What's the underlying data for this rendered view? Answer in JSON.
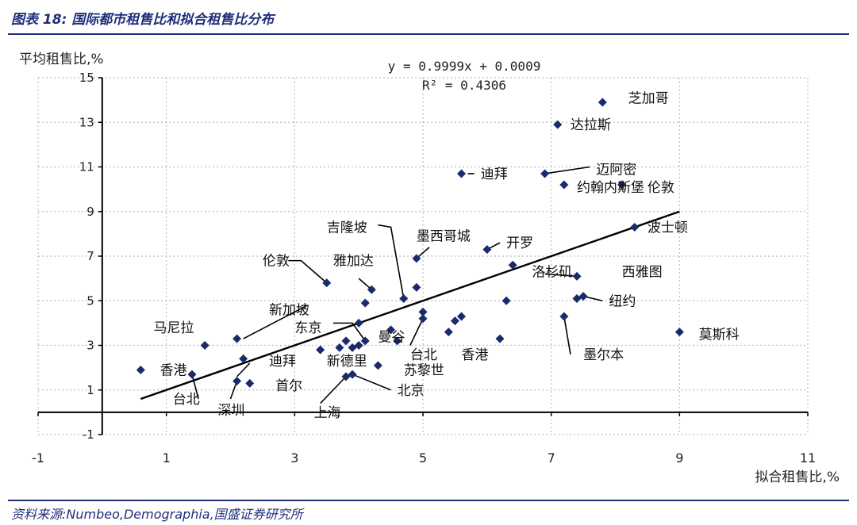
{
  "header": {
    "title": "图表 18:  国际都市租售比和拟合租售比分布"
  },
  "footer": {
    "source": "资料来源:Numbeo,Demographia,国盛证券研究所"
  },
  "colors": {
    "accent": "#1f2f7a",
    "marker": "#1a2a6c",
    "line": "#000000",
    "grid": "#bdbdbd"
  },
  "chart_data": {
    "type": "scatter",
    "xlabel": "拟合租售比,%",
    "ylabel": "平均租售比,%",
    "xlim": [
      -1,
      11
    ],
    "ylim": [
      -1,
      15
    ],
    "x_ticks": [
      -1,
      1,
      3,
      5,
      7,
      9,
      11
    ],
    "y_ticks": [
      -1,
      1,
      3,
      5,
      7,
      9,
      11,
      13,
      15
    ],
    "x_tick_labels": [
      "-1",
      "1",
      "3",
      "5",
      "7",
      "9",
      "11"
    ],
    "y_tick_labels": [
      "-1",
      "1",
      "3",
      "5",
      "7",
      "9",
      "11",
      "13",
      "15"
    ],
    "grid": true,
    "equation": "y = 0.9999x + 0.0009",
    "r_squared": "R² = 0.4306",
    "trendline": {
      "slope": 0.9999,
      "intercept": 0.0009,
      "x_range": [
        0.6,
        9.0
      ]
    },
    "points": [
      {
        "x": 0.6,
        "y": 1.9
      },
      {
        "x": 1.6,
        "y": 3.0
      },
      {
        "x": 1.4,
        "y": 1.7
      },
      {
        "x": 2.1,
        "y": 1.4
      },
      {
        "x": 2.2,
        "y": 2.4
      },
      {
        "x": 2.1,
        "y": 3.3
      },
      {
        "x": 2.3,
        "y": 1.3
      },
      {
        "x": 3.5,
        "y": 5.8
      },
      {
        "x": 3.4,
        "y": 2.8
      },
      {
        "x": 3.7,
        "y": 2.9
      },
      {
        "x": 3.8,
        "y": 3.2
      },
      {
        "x": 3.9,
        "y": 2.9
      },
      {
        "x": 4.0,
        "y": 3.0
      },
      {
        "x": 4.1,
        "y": 3.2
      },
      {
        "x": 4.0,
        "y": 4.0
      },
      {
        "x": 4.1,
        "y": 4.9
      },
      {
        "x": 4.2,
        "y": 5.5
      },
      {
        "x": 3.8,
        "y": 1.6
      },
      {
        "x": 3.9,
        "y": 1.7
      },
      {
        "x": 4.3,
        "y": 2.1
      },
      {
        "x": 4.5,
        "y": 3.7
      },
      {
        "x": 4.6,
        "y": 3.2
      },
      {
        "x": 4.7,
        "y": 5.1
      },
      {
        "x": 4.9,
        "y": 6.9
      },
      {
        "x": 4.9,
        "y": 5.6
      },
      {
        "x": 5.0,
        "y": 4.5
      },
      {
        "x": 5.0,
        "y": 4.2
      },
      {
        "x": 5.4,
        "y": 3.6
      },
      {
        "x": 5.5,
        "y": 4.1
      },
      {
        "x": 5.6,
        "y": 4.3
      },
      {
        "x": 5.6,
        "y": 10.7
      },
      {
        "x": 6.0,
        "y": 7.3
      },
      {
        "x": 6.3,
        "y": 5.0
      },
      {
        "x": 6.2,
        "y": 3.3
      },
      {
        "x": 6.4,
        "y": 6.6
      },
      {
        "x": 6.9,
        "y": 10.7
      },
      {
        "x": 7.1,
        "y": 12.9
      },
      {
        "x": 7.2,
        "y": 10.2
      },
      {
        "x": 7.2,
        "y": 4.3
      },
      {
        "x": 7.4,
        "y": 6.1
      },
      {
        "x": 7.4,
        "y": 5.1
      },
      {
        "x": 7.5,
        "y": 5.2
      },
      {
        "x": 7.8,
        "y": 13.9
      },
      {
        "x": 8.1,
        "y": 10.2
      },
      {
        "x": 8.3,
        "y": 8.3
      },
      {
        "x": 9.0,
        "y": 3.6
      }
    ],
    "annotations": [
      {
        "text": "芝加哥",
        "x": 8.2,
        "y": 14.1
      },
      {
        "text": "达拉斯",
        "x": 7.3,
        "y": 12.9
      },
      {
        "text": "迈阿密",
        "x": 7.7,
        "y": 10.9
      },
      {
        "text": "迪拜",
        "x": 5.9,
        "y": 10.7
      },
      {
        "text": "约翰内斯堡",
        "x": 7.4,
        "y": 10.1
      },
      {
        "text": "伦敦",
        "x": 8.5,
        "y": 10.1
      },
      {
        "text": "波士顿",
        "x": 8.5,
        "y": 8.3
      },
      {
        "text": "开罗",
        "x": 6.3,
        "y": 7.6
      },
      {
        "text": "吉隆坡",
        "x": 3.5,
        "y": 8.3
      },
      {
        "text": "墨西哥城",
        "x": 4.9,
        "y": 7.9
      },
      {
        "text": "伦敦",
        "x": 2.5,
        "y": 6.8
      },
      {
        "text": "雅加达",
        "x": 3.6,
        "y": 6.8
      },
      {
        "text": "洛杉矶",
        "x": 6.7,
        "y": 6.3
      },
      {
        "text": "西雅图",
        "x": 8.1,
        "y": 6.3
      },
      {
        "text": "纽约",
        "x": 7.9,
        "y": 5.0
      },
      {
        "text": "新加坡",
        "x": 2.6,
        "y": 4.6
      },
      {
        "text": "马尼拉",
        "x": 0.8,
        "y": 3.8
      },
      {
        "text": "东京",
        "x": 3.0,
        "y": 3.8
      },
      {
        "text": "曼谷",
        "x": 4.3,
        "y": 3.4
      },
      {
        "text": "莫斯科",
        "x": 9.3,
        "y": 3.5
      },
      {
        "text": "台北",
        "x": 4.8,
        "y": 2.6
      },
      {
        "text": "香港",
        "x": 5.6,
        "y": 2.6
      },
      {
        "text": "墨尔本",
        "x": 7.5,
        "y": 2.6
      },
      {
        "text": "迪拜",
        "x": 2.6,
        "y": 2.3
      },
      {
        "text": "新德里",
        "x": 3.5,
        "y": 2.3
      },
      {
        "text": "香港",
        "x": 0.9,
        "y": 1.9
      },
      {
        "text": "苏黎世",
        "x": 4.7,
        "y": 1.9
      },
      {
        "text": "首尔",
        "x": 2.7,
        "y": 1.2
      },
      {
        "text": "北京",
        "x": 4.6,
        "y": 1.0
      },
      {
        "text": "台北",
        "x": 1.1,
        "y": 0.6
      },
      {
        "text": "深圳",
        "x": 1.8,
        "y": 0.1
      },
      {
        "text": "上海",
        "x": 3.3,
        "y": 0.0
      }
    ],
    "leader_lines": [
      {
        "from": [
          5.8,
          10.7
        ],
        "to": [
          5.7,
          10.7
        ]
      },
      {
        "from": [
          7.6,
          11.0
        ],
        "to": [
          6.9,
          10.7
        ]
      },
      {
        "from": [
          6.2,
          7.6
        ],
        "to": [
          6.0,
          7.3
        ]
      },
      {
        "from": [
          4.3,
          8.4
        ],
        "to": [
          4.5,
          8.3
        ],
        "via": [
          4.7,
          5.1
        ]
      },
      {
        "from": [
          5.1,
          7.4
        ],
        "to": [
          4.9,
          6.9
        ]
      },
      {
        "from": [
          2.9,
          6.8
        ],
        "to": [
          3.1,
          6.8
        ],
        "via": [
          3.5,
          5.8
        ]
      },
      {
        "from": [
          4.0,
          6.0
        ],
        "to": [
          4.2,
          5.5
        ]
      },
      {
        "from": [
          6.9,
          6.2
        ],
        "to": [
          7.4,
          6.1
        ]
      },
      {
        "from": [
          7.8,
          5.0
        ],
        "to": [
          7.5,
          5.2
        ]
      },
      {
        "from": [
          3.2,
          4.8
        ],
        "to": [
          2.2,
          3.3
        ]
      },
      {
        "from": [
          3.6,
          4.0
        ],
        "to": [
          3.9,
          4.0
        ],
        "via": [
          4.1,
          3.2
        ]
      },
      {
        "from": [
          4.8,
          3.0
        ],
        "to": [
          5.0,
          4.2
        ]
      },
      {
        "from": [
          7.3,
          2.6
        ],
        "to": [
          7.2,
          4.3
        ]
      },
      {
        "from": [
          2.3,
          2.2
        ],
        "to": [
          2.1,
          1.6
        ]
      },
      {
        "from": [
          2.0,
          0.6
        ],
        "to": [
          2.1,
          1.4
        ]
      },
      {
        "from": [
          4.5,
          1.0
        ],
        "to": [
          3.9,
          1.7
        ]
      },
      {
        "from": [
          3.4,
          0.4
        ],
        "to": [
          3.8,
          1.6
        ]
      },
      {
        "from": [
          1.5,
          0.6
        ],
        "to": [
          1.4,
          1.7
        ]
      }
    ]
  }
}
